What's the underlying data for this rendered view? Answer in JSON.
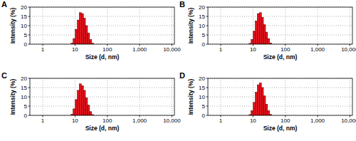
{
  "chart_data": [
    {
      "type": "histogram",
      "title": "A",
      "x_label": "Size (d, nm)",
      "y_label": "Intensity (%)",
      "bins": [
        7.5,
        8.7,
        10.1,
        11.7,
        13.5,
        15.7,
        18.2,
        21.0,
        24.4,
        28.2,
        32.7,
        37.8
      ],
      "values": [
        0.5,
        3,
        8,
        13,
        17,
        16.5,
        14,
        10,
        6,
        2.5,
        0.5
      ],
      "color": "#e3151d",
      "log": "x",
      "grid": true,
      "xlim": [
        0.4,
        12000
      ],
      "xticks": [
        1,
        10,
        100,
        {
          "value": 1000,
          "label": "1,000"
        },
        {
          "value": 10000,
          "label": "10,000"
        }
      ],
      "ylim": [
        0,
        20
      ],
      "yticks": [
        0,
        5,
        10,
        15,
        20
      ]
    },
    {
      "type": "histogram",
      "title": "B",
      "x_label": "Size (d, nm)",
      "y_label": "Intensity (%)",
      "bins": [
        7.5,
        8.7,
        10.1,
        11.7,
        13.5,
        15.7,
        18.2,
        21.0,
        24.4,
        28.2,
        32.7,
        37.8
      ],
      "values": [
        0.4,
        2.5,
        7,
        12.5,
        16.5,
        17,
        14.5,
        10.5,
        6.5,
        3,
        0.6
      ],
      "color": "#e3151d",
      "log": "x",
      "grid": true,
      "xlim": [
        0.4,
        12000
      ],
      "xticks": [
        1,
        10,
        100,
        {
          "value": 1000,
          "label": "1,000"
        },
        {
          "value": 10000,
          "label": "10,000"
        }
      ],
      "ylim": [
        0,
        20
      ],
      "yticks": [
        0,
        5,
        10,
        15,
        20
      ]
    },
    {
      "type": "histogram",
      "title": "C",
      "x_label": "Size (d, nm)",
      "y_label": "Intensity (%)",
      "bins": [
        7.5,
        8.7,
        10.1,
        11.7,
        13.5,
        15.7,
        18.2,
        21.0,
        24.4,
        28.2,
        32.7,
        37.8
      ],
      "values": [
        0.6,
        3.5,
        8.5,
        13.5,
        17,
        16,
        13.5,
        9.5,
        5.5,
        2,
        0.4
      ],
      "color": "#e3151d",
      "log": "x",
      "grid": true,
      "xlim": [
        0.4,
        12000
      ],
      "xticks": [
        1,
        10,
        100,
        {
          "value": 1000,
          "label": "1,000"
        },
        {
          "value": 10000,
          "label": "10,000"
        }
      ],
      "ylim": [
        0,
        20
      ],
      "yticks": [
        0,
        5,
        10,
        15,
        20
      ]
    },
    {
      "type": "histogram",
      "title": "D",
      "x_label": "Size (d, nm)",
      "y_label": "Intensity (%)",
      "bins": [
        7.5,
        8.7,
        10.1,
        11.7,
        13.5,
        15.7,
        18.2,
        21.0,
        24.4,
        28.2,
        32.7,
        37.8
      ],
      "values": [
        0.4,
        2.5,
        7,
        12.5,
        16.5,
        17.5,
        15,
        10.5,
        6,
        2.5,
        0.5
      ],
      "color": "#e3151d",
      "log": "x",
      "grid": true,
      "xlim": [
        0.4,
        12000
      ],
      "xticks": [
        1,
        10,
        100,
        {
          "value": 1000,
          "label": "1,000"
        },
        {
          "value": 10000,
          "label": "10,000"
        }
      ],
      "ylim": [
        0,
        20
      ],
      "yticks": [
        0,
        5,
        10,
        15,
        20
      ]
    }
  ]
}
